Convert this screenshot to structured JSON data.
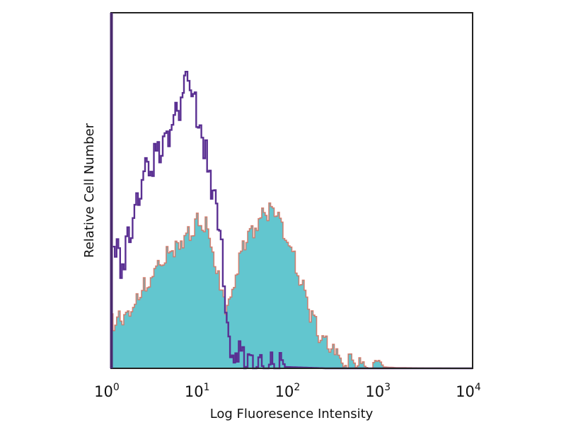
{
  "chart_data": {
    "type": "area",
    "title": "",
    "xlabel": "Log Fluoresence Intensity",
    "ylabel": "Relative Cell Number",
    "x_scale": "log",
    "xlim": [
      1,
      10000
    ],
    "ylim": [
      0,
      100
    ],
    "grid": false,
    "x_ticks": [
      {
        "base": "10",
        "exp": "0",
        "value": 1
      },
      {
        "base": "10",
        "exp": "1",
        "value": 10
      },
      {
        "base": "10",
        "exp": "2",
        "value": 100
      },
      {
        "base": "10",
        "exp": "3",
        "value": 1000
      },
      {
        "base": "10",
        "exp": "4",
        "value": 10000
      }
    ],
    "series": [
      {
        "style": "filled",
        "color": "#62c6cf",
        "edge_color": "#d4705e",
        "x": [
          1,
          1.05,
          1.38,
          1.81,
          2.38,
          3.11,
          4.07,
          5.35,
          7.0,
          9.2,
          11.0,
          13.1,
          15.8,
          18.2,
          20.7,
          24.7,
          29.6,
          38.8,
          50.8,
          60.9,
          73,
          95.6,
          125,
          164,
          215,
          282,
          402,
          690,
          1400,
          3000,
          10000
        ],
        "y": [
          14,
          12.9,
          13.9,
          17.9,
          23.9,
          27.9,
          31.9,
          34.9,
          37.8,
          41.8,
          39.8,
          31.9,
          23.9,
          17.9,
          21.9,
          27.9,
          34.9,
          39.8,
          43.8,
          44.8,
          41.8,
          33.9,
          23.9,
          13.9,
          8,
          4,
          2,
          0.6,
          0.2,
          0.1,
          0
        ]
      },
      {
        "style": "outline",
        "color": "#5a2f92",
        "x": [
          1.05,
          1.26,
          1.51,
          1.81,
          2.17,
          2.6,
          3.11,
          3.73,
          4.47,
          5.35,
          6.17,
          6.64,
          7.39,
          8.39,
          9.5,
          11.0,
          12.7,
          14.4,
          16.3,
          18.2,
          20.7,
          24.7,
          29.6,
          38.8,
          79.8,
          235,
          10000
        ],
        "y": [
          37.8,
          27.9,
          35.9,
          45.8,
          53.8,
          55.8,
          59.8,
          63.7,
          67.7,
          71.7,
          77.7,
          81.7,
          75.7,
          73.7,
          67.7,
          59.8,
          51.8,
          43.8,
          31.9,
          19.9,
          6,
          4,
          1,
          0.4,
          0.4,
          0,
          0
        ]
      }
    ]
  }
}
